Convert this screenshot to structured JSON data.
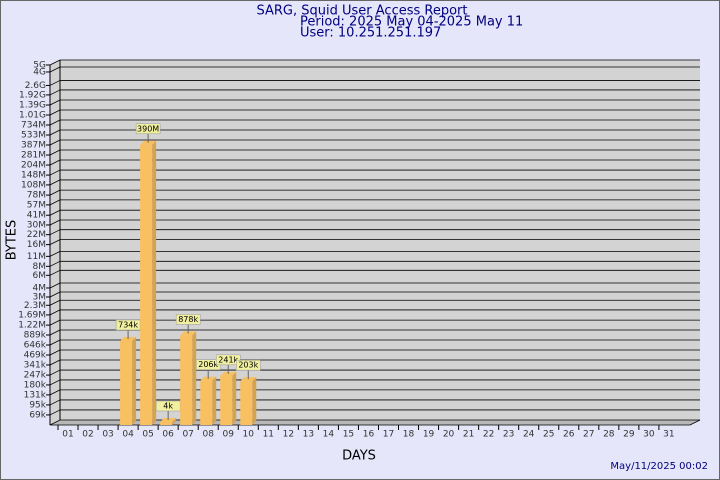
{
  "chart_data": {
    "type": "bar",
    "title": "SARG, Squid User Access Report",
    "subtitle": "Period: 2025 May 04-2025 May 11",
    "user": "User: 10.251.251.197",
    "x_label": "DAYS",
    "y_label": "BYTES",
    "footer": "May/11/2025 00:02",
    "log_scale": true,
    "grid": true,
    "color": "#f8c060",
    "categories": [
      "01",
      "02",
      "03",
      "04",
      "05",
      "06",
      "07",
      "08",
      "09",
      "10",
      "11",
      "12",
      "13",
      "14",
      "15",
      "16",
      "17",
      "18",
      "19",
      "20",
      "21",
      "22",
      "23",
      "24",
      "25",
      "26",
      "27",
      "28",
      "29",
      "30",
      "31"
    ],
    "values": [
      null,
      null,
      null,
      734000,
      390000000,
      4000,
      878000,
      206000,
      241000,
      203000,
      null,
      null,
      null,
      null,
      null,
      null,
      null,
      null,
      null,
      null,
      null,
      null,
      null,
      null,
      null,
      null,
      null,
      null,
      null,
      null,
      null
    ],
    "value_labels": [
      null,
      null,
      null,
      "734k",
      "390M",
      "4k",
      "878k",
      "206k",
      "241k",
      "203k",
      null,
      null,
      null,
      null,
      null,
      null,
      null,
      null,
      null,
      null,
      null,
      null,
      null,
      null,
      null,
      null,
      null,
      null,
      null,
      null,
      null
    ],
    "ylim": [
      50000,
      5000000000
    ],
    "yticks": [
      {
        "value": 69000,
        "label": "69k"
      },
      {
        "value": 95000,
        "label": "95k"
      },
      {
        "value": 131000,
        "label": "131k"
      },
      {
        "value": 180000,
        "label": "180k"
      },
      {
        "value": 247000,
        "label": "247k"
      },
      {
        "value": 341000,
        "label": "341k"
      },
      {
        "value": 469000,
        "label": "469k"
      },
      {
        "value": 646000,
        "label": "646k"
      },
      {
        "value": 889000,
        "label": "889k"
      },
      {
        "value": 1220000,
        "label": "1.22M"
      },
      {
        "value": 1690000,
        "label": "1.69M"
      },
      {
        "value": 2300000,
        "label": "2.3M"
      },
      {
        "value": 3000000,
        "label": "3M"
      },
      {
        "value": 4000000,
        "label": "4M"
      },
      {
        "value": 6000000,
        "label": "6M"
      },
      {
        "value": 8000000,
        "label": "8M"
      },
      {
        "value": 11000000,
        "label": "11M"
      },
      {
        "value": 16000000,
        "label": "16M"
      },
      {
        "value": 22000000,
        "label": "22M"
      },
      {
        "value": 30000000,
        "label": "30M"
      },
      {
        "value": 41000000,
        "label": "41M"
      },
      {
        "value": 57000000,
        "label": "57M"
      },
      {
        "value": 78000000,
        "label": "78M"
      },
      {
        "value": 108000000,
        "label": "108M"
      },
      {
        "value": 148000000,
        "label": "148M"
      },
      {
        "value": 204000000,
        "label": "204M"
      },
      {
        "value": 281000000,
        "label": "281M"
      },
      {
        "value": 387000000,
        "label": "387M"
      },
      {
        "value": 533000000,
        "label": "533M"
      },
      {
        "value": 734000000,
        "label": "734M"
      },
      {
        "value": 1010000000,
        "label": "1.01G"
      },
      {
        "value": 1390000000,
        "label": "1.39G"
      },
      {
        "value": 1920000000,
        "label": "1.92G"
      },
      {
        "value": 2600000000,
        "label": "2.6G"
      },
      {
        "value": 4000000000,
        "label": "4G"
      },
      {
        "value": 5000000000,
        "label": "5G"
      }
    ]
  }
}
